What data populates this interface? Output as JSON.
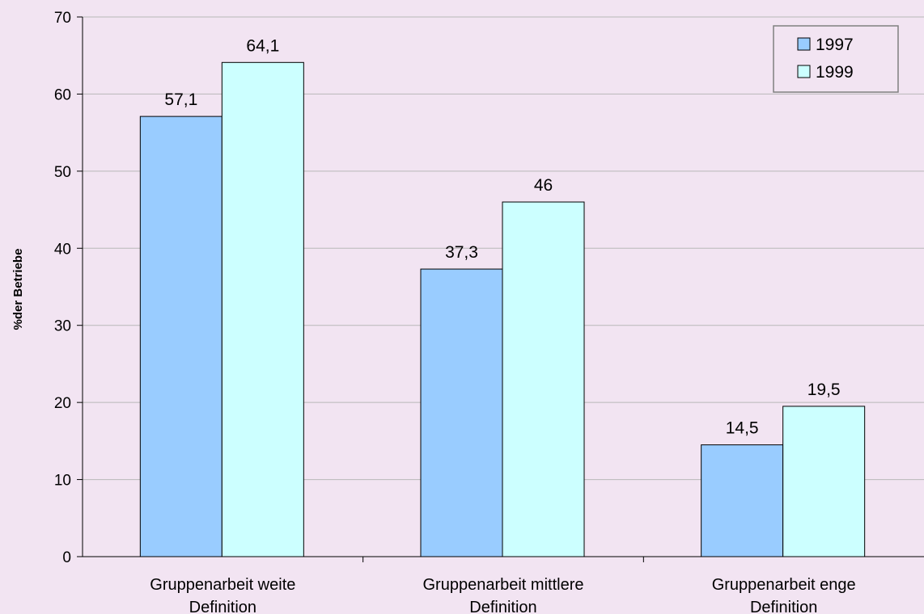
{
  "chart_data": {
    "type": "bar",
    "categories": [
      [
        "Gruppenarbeit weite",
        "Definition"
      ],
      [
        "Gruppenarbeit mittlere",
        "Definition"
      ],
      [
        "Gruppenarbeit enge",
        "Definition"
      ]
    ],
    "series": [
      {
        "name": "1997",
        "values": [
          57.1,
          37.3,
          14.5
        ],
        "labels": [
          "57,1",
          "37,3",
          "14,5"
        ],
        "color": "#99ccff"
      },
      {
        "name": "1999",
        "values": [
          64.1,
          46,
          19.5
        ],
        "labels": [
          "64,1",
          "46",
          "19,5"
        ],
        "color": "#ccffff"
      }
    ],
    "title": "",
    "xlabel": "",
    "ylabel": "%der Betriebe",
    "ylim": [
      0,
      70
    ],
    "yticks": [
      0,
      10,
      20,
      30,
      40,
      50,
      60,
      70
    ],
    "grid": true,
    "legend": "top-right",
    "background": "#f2e4f2",
    "gridline_color": "#b8b8b8"
  }
}
